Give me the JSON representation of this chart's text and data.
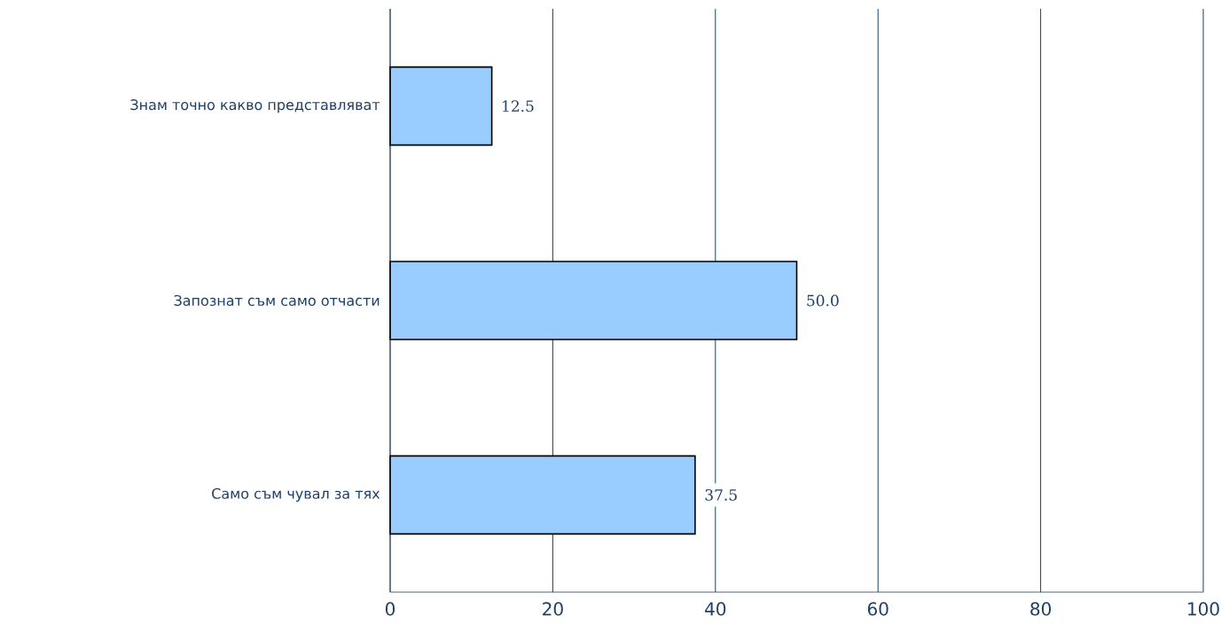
{
  "chart_data": {
    "type": "bar",
    "orientation": "horizontal",
    "categories": [
      "Знам точно какво представляват",
      "Запознат съм само отчасти",
      "Само съм чувал за тях"
    ],
    "values": [
      12.5,
      50.0,
      37.5
    ],
    "value_labels": [
      "12.5",
      "50.0",
      "37.5"
    ],
    "color": "#99ccff",
    "xlim": [
      0,
      100
    ],
    "xticks": [
      0,
      20,
      40,
      60,
      80,
      100
    ],
    "grid": "x"
  }
}
